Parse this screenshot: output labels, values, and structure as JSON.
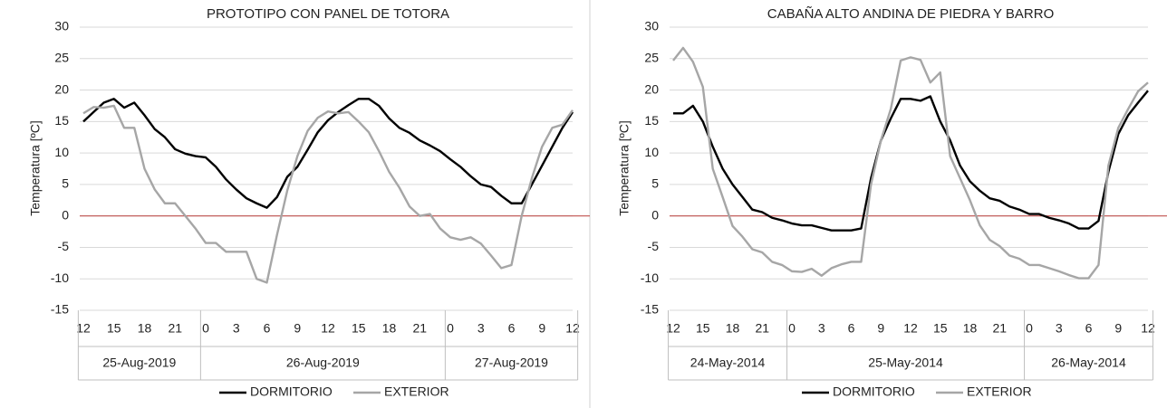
{
  "chart_data": [
    {
      "type": "line",
      "title": "PROTOTIPO CON PANEL DE TOTORA",
      "ylabel": "Temperatura [ºC]",
      "categories": [
        "12",
        null,
        null,
        "15",
        null,
        null,
        "18",
        null,
        null,
        "21",
        null,
        null,
        "0",
        null,
        null,
        "3",
        null,
        null,
        "6",
        null,
        null,
        "9",
        null,
        null,
        "12",
        null,
        null,
        "15",
        null,
        null,
        "18",
        null,
        null,
        "21",
        null,
        null,
        "0",
        null,
        null,
        "3",
        null,
        null,
        "6",
        null,
        null,
        "9",
        null,
        null,
        "12"
      ],
      "groups": [
        "25-Aug-2019",
        "26-Aug-2019",
        "27-Aug-2019"
      ],
      "series": [
        {
          "name": "DORMITORIO",
          "color": "#000000",
          "values": [
            15,
            16.5,
            18,
            18.6,
            17.2,
            18,
            16,
            13.8,
            12.5,
            10.6,
            9.9,
            9.5,
            9.3,
            7.8,
            5.8,
            4.2,
            2.8,
            2,
            1.3,
            3,
            6.2,
            7.8,
            10.5,
            13.3,
            15.2,
            16.5,
            17.6,
            18.6,
            18.6,
            17.5,
            15.5,
            14,
            13.2,
            12,
            11.2,
            10.3,
            9,
            7.8,
            6.3,
            5,
            4.6,
            3.2,
            2,
            2,
            5,
            8,
            11,
            14,
            16.5
          ]
        },
        {
          "name": "EXTERIOR",
          "color": "#a6a6a6",
          "values": [
            16.3,
            17.3,
            17.2,
            17.5,
            14,
            14,
            7.5,
            4.2,
            2,
            2,
            0,
            -2,
            -4.3,
            -4.3,
            -5.7,
            -5.7,
            -5.7,
            -10,
            -10.6,
            -3,
            4,
            9.5,
            13.5,
            15.6,
            16.6,
            16.3,
            16.5,
            15,
            13.3,
            10.3,
            7,
            4.5,
            1.5,
            0,
            0.3,
            -2,
            -3.4,
            -3.8,
            -3.4,
            -4.4,
            -6.3,
            -8.3,
            -7.8,
            0,
            6,
            11,
            14,
            14.5,
            16.8
          ]
        }
      ],
      "ylim": [
        -15,
        30
      ],
      "yticks": [
        -15,
        -10,
        -5,
        0,
        5,
        10,
        15,
        20,
        25,
        30
      ],
      "grid": true,
      "hline": {
        "value": 0,
        "color": "#c0504d"
      }
    },
    {
      "type": "line",
      "title": "CABAÑA ALTO ANDINA DE PIEDRA Y BARRO",
      "ylabel": "Temperatura [ºC]",
      "categories": [
        "12",
        null,
        null,
        "15",
        null,
        null,
        "18",
        null,
        null,
        "21",
        null,
        null,
        "0",
        null,
        null,
        "3",
        null,
        null,
        "6",
        null,
        null,
        "9",
        null,
        null,
        "12",
        null,
        null,
        "15",
        null,
        null,
        "18",
        null,
        null,
        "21",
        null,
        null,
        "0",
        null,
        null,
        "3",
        null,
        null,
        "6",
        null,
        null,
        "9",
        null,
        null,
        "12"
      ],
      "groups": [
        "24-May-2014",
        "25-May-2014",
        "26-May-2014"
      ],
      "series": [
        {
          "name": "DORMITORIO",
          "color": "#000000",
          "values": [
            16.3,
            16.3,
            17.5,
            15,
            11,
            7.5,
            5,
            3,
            1,
            0.6,
            -0.3,
            -0.7,
            -1.2,
            -1.5,
            -1.5,
            -1.9,
            -2.3,
            -2.3,
            -2.3,
            -2,
            6,
            12,
            15.5,
            18.6,
            18.6,
            18.3,
            19,
            15,
            12,
            8,
            5.5,
            4,
            2.8,
            2.4,
            1.5,
            1,
            0.3,
            0.3,
            -0.3,
            -0.7,
            -1.2,
            -2,
            -2,
            -0.8,
            7,
            13,
            16,
            18,
            19.9
          ]
        },
        {
          "name": "EXTERIOR",
          "color": "#a6a6a6",
          "values": [
            24.7,
            26.7,
            24.5,
            20.5,
            7.5,
            3,
            -1.6,
            -3.3,
            -5.3,
            -5.8,
            -7.3,
            -7.8,
            -8.8,
            -8.9,
            -8.4,
            -9.5,
            -8.3,
            -7.7,
            -7.3,
            -7.3,
            5,
            12,
            17,
            24.7,
            25.2,
            24.8,
            21.2,
            22.8,
            9.5,
            6,
            2.5,
            -1.5,
            -3.8,
            -4.8,
            -6.3,
            -6.8,
            -7.8,
            -7.8,
            -8.3,
            -8.8,
            -9.4,
            -9.9,
            -9.9,
            -7.8,
            8,
            14,
            17,
            19.8,
            21.2
          ]
        }
      ],
      "ylim": [
        -15,
        30
      ],
      "yticks": [
        -15,
        -10,
        -5,
        0,
        5,
        10,
        15,
        20,
        25,
        30
      ],
      "grid": true,
      "hline": {
        "value": 0,
        "color": "#c0504d"
      }
    }
  ]
}
